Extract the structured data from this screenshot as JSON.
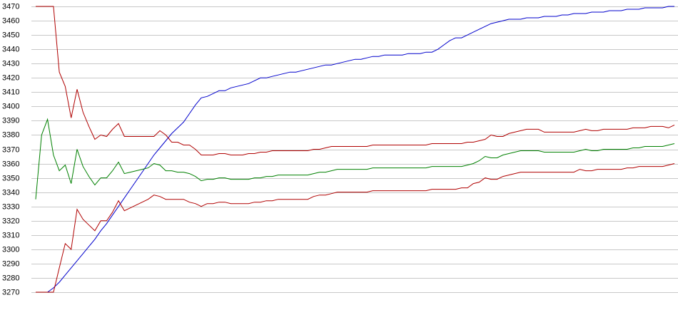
{
  "chart_data": {
    "type": "line",
    "ylim": [
      3270,
      3470
    ],
    "yticks": [
      3270,
      3280,
      3290,
      3300,
      3310,
      3320,
      3330,
      3340,
      3350,
      3360,
      3370,
      3380,
      3390,
      3400,
      3410,
      3420,
      3430,
      3440,
      3450,
      3460,
      3470
    ],
    "grid": true,
    "series": [
      {
        "color": "#0000cc",
        "values": [
          3270,
          3270,
          3270,
          3273,
          3277,
          3282,
          3287,
          3292,
          3297,
          3302,
          3307,
          3313,
          3318,
          3324,
          3330,
          3336,
          3342,
          3348,
          3354,
          3360,
          3366,
          3371,
          3376,
          3381,
          3385,
          3389,
          3395,
          3401,
          3406,
          3407,
          3409,
          3411,
          3411,
          3413,
          3414,
          3415,
          3416,
          3418,
          3420,
          3420,
          3421,
          3422,
          3423,
          3424,
          3424,
          3425,
          3426,
          3427,
          3428,
          3429,
          3429,
          3430,
          3431,
          3432,
          3433,
          3433,
          3434,
          3435,
          3435,
          3436,
          3436,
          3436,
          3436,
          3437,
          3437,
          3437,
          3438,
          3438,
          3440,
          3443,
          3446,
          3448,
          3448,
          3450,
          3452,
          3454,
          3456,
          3458,
          3459,
          3460,
          3461,
          3461,
          3461,
          3462,
          3462,
          3462,
          3463,
          3463,
          3463,
          3464,
          3464,
          3465,
          3465,
          3465,
          3466,
          3466,
          3466,
          3467,
          3467,
          3467,
          3468,
          3468,
          3468,
          3469,
          3469,
          3469,
          3469,
          3470,
          3470
        ]
      },
      {
        "color": "#b00000",
        "values": [
          3470,
          3470,
          3470,
          3470,
          3424,
          3414,
          3392,
          3412,
          3396,
          3386,
          3377,
          3380,
          3379,
          3384,
          3388,
          3379,
          3379,
          3379,
          3379,
          3379,
          3379,
          3383,
          3380,
          3375,
          3375,
          3373,
          3373,
          3370,
          3366,
          3366,
          3366,
          3367,
          3367,
          3366,
          3366,
          3366,
          3367,
          3367,
          3368,
          3368,
          3369,
          3369,
          3369,
          3369,
          3369,
          3369,
          3369,
          3370,
          3370,
          3371,
          3372,
          3372,
          3372,
          3372,
          3372,
          3372,
          3372,
          3373,
          3373,
          3373,
          3373,
          3373,
          3373,
          3373,
          3373,
          3373,
          3373,
          3374,
          3374,
          3374,
          3374,
          3374,
          3374,
          3375,
          3375,
          3376,
          3377,
          3380,
          3379,
          3379,
          3381,
          3382,
          3383,
          3384,
          3384,
          3384,
          3382,
          3382,
          3382,
          3382,
          3382,
          3382,
          3383,
          3384,
          3383,
          3383,
          3384,
          3384,
          3384,
          3384,
          3384,
          3385,
          3385,
          3385,
          3386,
          3386,
          3386,
          3385,
          3387
        ]
      },
      {
        "color": "#008000",
        "values": [
          3335,
          3380,
          3391,
          3366,
          3355,
          3359,
          3346,
          3370,
          3358,
          3351,
          3345,
          3350,
          3350,
          3355,
          3361,
          3353,
          3354,
          3355,
          3356,
          3357,
          3360,
          3359,
          3355,
          3355,
          3354,
          3354,
          3353,
          3351,
          3348,
          3349,
          3349,
          3350,
          3350,
          3349,
          3349,
          3349,
          3349,
          3350,
          3350,
          3351,
          3351,
          3352,
          3352,
          3352,
          3352,
          3352,
          3352,
          3353,
          3354,
          3354,
          3355,
          3356,
          3356,
          3356,
          3356,
          3356,
          3356,
          3357,
          3357,
          3357,
          3357,
          3357,
          3357,
          3357,
          3357,
          3357,
          3357,
          3358,
          3358,
          3358,
          3358,
          3358,
          3358,
          3359,
          3360,
          3362,
          3365,
          3364,
          3364,
          3366,
          3367,
          3368,
          3369,
          3369,
          3369,
          3369,
          3368,
          3368,
          3368,
          3368,
          3368,
          3368,
          3369,
          3370,
          3369,
          3369,
          3370,
          3370,
          3370,
          3370,
          3370,
          3371,
          3371,
          3372,
          3372,
          3372,
          3372,
          3373,
          3374
        ]
      },
      {
        "color": "#b00000",
        "values": [
          3270,
          3270,
          3270,
          3270,
          3287,
          3304,
          3300,
          3328,
          3321,
          3317,
          3313,
          3320,
          3320,
          3326,
          3334,
          3327,
          3329,
          3331,
          3333,
          3335,
          3338,
          3337,
          3335,
          3335,
          3335,
          3335,
          3333,
          3332,
          3330,
          3332,
          3332,
          3333,
          3333,
          3332,
          3332,
          3332,
          3332,
          3333,
          3333,
          3334,
          3334,
          3335,
          3335,
          3335,
          3335,
          3335,
          3335,
          3337,
          3338,
          3338,
          3339,
          3340,
          3340,
          3340,
          3340,
          3340,
          3340,
          3341,
          3341,
          3341,
          3341,
          3341,
          3341,
          3341,
          3341,
          3341,
          3341,
          3342,
          3342,
          3342,
          3342,
          3342,
          3343,
          3343,
          3346,
          3347,
          3350,
          3349,
          3349,
          3351,
          3352,
          3353,
          3354,
          3354,
          3354,
          3354,
          3354,
          3354,
          3354,
          3354,
          3354,
          3354,
          3356,
          3355,
          3355,
          3356,
          3356,
          3356,
          3356,
          3356,
          3357,
          3357,
          3358,
          3358,
          3358,
          3358,
          3358,
          3359,
          3360
        ]
      }
    ]
  }
}
